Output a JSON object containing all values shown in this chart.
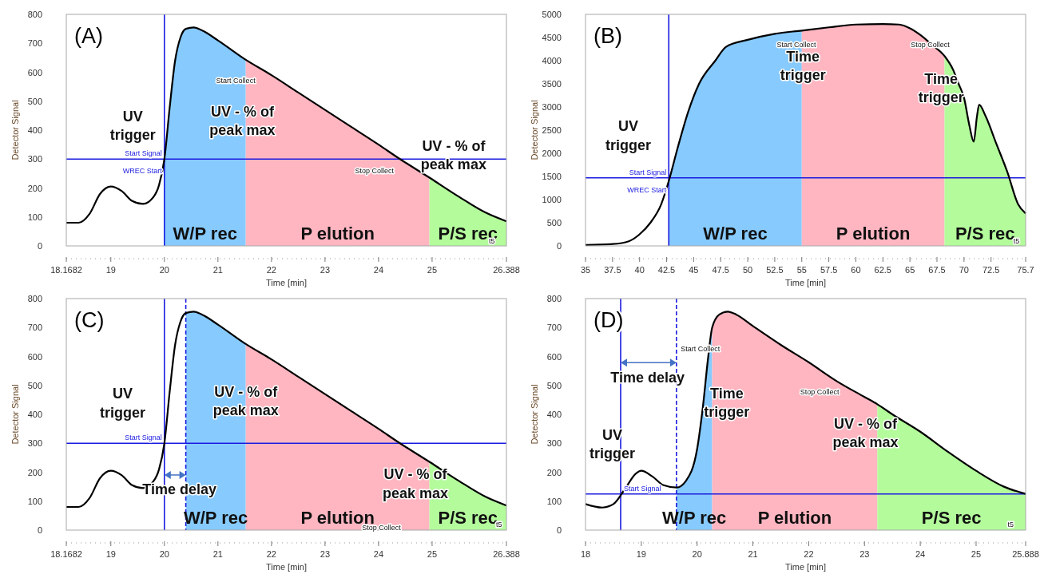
{
  "chart_data": [
    {
      "type": "line",
      "title": "(A)",
      "xlabel": "Time [min]",
      "ylabel": "Detector Signal",
      "xlim": [
        18.1682,
        26.388
      ],
      "xticks": [
        18.1682,
        19,
        20,
        21,
        22,
        23,
        24,
        25,
        26.388
      ],
      "ylim": [
        0,
        800
      ],
      "yticks": [
        0,
        100,
        200,
        300,
        400,
        500,
        600,
        700,
        800
      ],
      "series": [
        {
          "type": "area",
          "name": "W/P rec",
          "color": "#87cafe",
          "x": [
            20.0,
            20.1,
            20.2,
            20.3,
            20.4,
            20.55,
            20.7,
            21.0,
            21.52
          ],
          "values": [
            300,
            480,
            640,
            720,
            750,
            755,
            745,
            710,
            643
          ]
        },
        {
          "type": "area",
          "name": "P elution",
          "color": "#ffb6c1",
          "x": [
            21.52,
            22,
            22.5,
            23,
            23.5,
            24,
            24.4,
            24.95
          ],
          "values": [
            643,
            590,
            530,
            470,
            410,
            350,
            300,
            236
          ]
        },
        {
          "type": "area",
          "name": "P/S rec",
          "color": "#b4fb9c",
          "x": [
            24.95,
            25.5,
            26,
            26.388
          ],
          "values": [
            236,
            170,
            115,
            85
          ]
        },
        {
          "color": "#000000",
          "x": [
            18.1682,
            18.4,
            18.6,
            18.8,
            19.0,
            19.2,
            19.4,
            19.6,
            19.8,
            19.9,
            20.0,
            20.1,
            20.2,
            20.3,
            20.4,
            20.55,
            20.7,
            21.0,
            21.52,
            22,
            22.5,
            23,
            23.5,
            24,
            24.4,
            24.95,
            25.5,
            26,
            26.388
          ],
          "values": [
            80,
            80,
            110,
            180,
            205,
            190,
            155,
            145,
            170,
            210,
            300,
            480,
            640,
            720,
            750,
            755,
            745,
            710,
            643,
            590,
            530,
            470,
            410,
            350,
            300,
            236,
            170,
            115,
            85
          ]
        }
      ],
      "ref_lines": [
        {
          "axis": "x",
          "value": 20,
          "label": "WREC Start",
          "color": "#1a1ae0"
        },
        {
          "axis": "y",
          "value": 300,
          "label": "Start Signal",
          "color": "#1a1ae0"
        }
      ],
      "annotations": [
        "UV\ntrigger",
        "UV - % of\npeak max",
        "UV - % of\npeak max",
        "Start Collect",
        "Stop Collect",
        "t5"
      ]
    },
    {
      "type": "line",
      "title": "(B)",
      "xlabel": "Time [min]",
      "ylabel": "Detector Signal",
      "xlim": [
        35,
        75.7
      ],
      "xticks": [
        35,
        37.5,
        40,
        42.5,
        45,
        47.5,
        50,
        52.5,
        55,
        57.5,
        60,
        62.5,
        65,
        67.5,
        70,
        72.5,
        75.7
      ],
      "ylim": [
        0,
        5000
      ],
      "yticks": [
        0,
        500,
        1000,
        1500,
        2000,
        2500,
        3000,
        3500,
        4000,
        4500,
        5000
      ],
      "series": [
        {
          "type": "area",
          "name": "W/P rec",
          "color": "#87cafe",
          "x": [
            42.7,
            43.5,
            44.5,
            45.5,
            47,
            48,
            50,
            52.5,
            55
          ],
          "values": [
            1400,
            2100,
            2900,
            3500,
            4000,
            4300,
            4450,
            4580,
            4650
          ]
        },
        {
          "type": "area",
          "name": "P elution",
          "color": "#ffb6c1",
          "x": [
            55,
            57.5,
            60,
            62.5,
            64,
            65,
            66,
            67,
            68.2
          ],
          "values": [
            4650,
            4720,
            4780,
            4790,
            4780,
            4700,
            4550,
            4350,
            4100
          ]
        },
        {
          "type": "area",
          "name": "P/S rec",
          "color": "#b4fb9c",
          "x": [
            68.2,
            69,
            69.5,
            70,
            70.5,
            70.9,
            71.2,
            71.4,
            72,
            73,
            74,
            75,
            75.7
          ],
          "values": [
            4100,
            3800,
            3500,
            3200,
            2600,
            2250,
            2800,
            3050,
            2800,
            2200,
            1600,
            900,
            700
          ]
        },
        {
          "color": "#000000",
          "x": [
            35,
            37.5,
            39,
            40,
            41,
            42,
            42.7,
            43.5,
            44.5,
            45.5,
            47,
            48,
            50,
            52.5,
            55,
            57.5,
            60,
            62.5,
            64,
            65,
            66,
            67,
            68.2,
            69,
            69.5,
            70,
            70.5,
            70.9,
            71.2,
            71.4,
            72,
            73,
            74,
            75,
            75.7
          ],
          "values": [
            20,
            40,
            100,
            250,
            500,
            900,
            1400,
            2100,
            2900,
            3500,
            4000,
            4300,
            4450,
            4580,
            4650,
            4720,
            4780,
            4790,
            4780,
            4700,
            4550,
            4350,
            4100,
            3800,
            3500,
            3200,
            2600,
            2250,
            2800,
            3050,
            2800,
            2200,
            1600,
            900,
            700
          ]
        }
      ],
      "ref_lines": [
        {
          "axis": "x",
          "value": 42.7,
          "label": "WREC Start",
          "color": "#1a1ae0"
        },
        {
          "axis": "y",
          "value": 1470,
          "label": "Start Signal",
          "color": "#1a1ae0"
        }
      ],
      "annotations": [
        "UV\ntrigger",
        "Time\ntrigger",
        "Time\ntrigger",
        "Start Collect",
        "Stop Collect",
        "t5"
      ]
    },
    {
      "type": "line",
      "title": "(C)",
      "xlabel": "Time [min]",
      "ylabel": "Detector Signal",
      "xlim": [
        18.1682,
        26.388
      ],
      "xticks": [
        18.1682,
        19,
        20,
        21,
        22,
        23,
        24,
        25,
        26.388
      ],
      "ylim": [
        0,
        800
      ],
      "yticks": [
        0,
        100,
        200,
        300,
        400,
        500,
        600,
        700,
        800
      ],
      "series": [
        {
          "type": "area",
          "name": "W/P rec",
          "color": "#87cafe",
          "x": [
            20.4,
            20.55,
            20.7,
            21.0,
            21.52
          ],
          "values": [
            750,
            755,
            745,
            710,
            643
          ]
        },
        {
          "type": "area",
          "name": "P elution",
          "color": "#ffb6c1",
          "x": [
            21.52,
            22,
            22.5,
            23,
            23.5,
            24,
            24.4,
            24.95
          ],
          "values": [
            643,
            590,
            530,
            470,
            410,
            350,
            300,
            236
          ]
        },
        {
          "type": "area",
          "name": "P/S rec",
          "color": "#b4fb9c",
          "x": [
            24.95,
            25.5,
            26,
            26.388
          ],
          "values": [
            236,
            170,
            115,
            85
          ]
        },
        {
          "color": "#000000",
          "x": [
            18.1682,
            18.4,
            18.6,
            18.8,
            19.0,
            19.2,
            19.4,
            19.6,
            19.8,
            19.9,
            20.0,
            20.1,
            20.2,
            20.3,
            20.4,
            20.55,
            20.7,
            21.0,
            21.52,
            22,
            22.5,
            23,
            23.5,
            24,
            24.4,
            24.95,
            25.5,
            26,
            26.388
          ],
          "values": [
            80,
            80,
            110,
            180,
            205,
            190,
            155,
            145,
            170,
            210,
            300,
            480,
            640,
            720,
            750,
            755,
            745,
            710,
            643,
            590,
            530,
            470,
            410,
            350,
            300,
            236,
            170,
            115,
            85
          ]
        }
      ],
      "ref_lines": [
        {
          "axis": "x",
          "value": 20,
          "color": "#1a1ae0"
        },
        {
          "axis": "x",
          "value": 20.4,
          "color": "#1a1ae0",
          "line_style": "dashed"
        },
        {
          "axis": "y",
          "value": 300,
          "label": "Start Signal",
          "color": "#1a1ae0"
        }
      ],
      "annotations": [
        "UV\ntrigger",
        "Time delay",
        "UV - % of\npeak max",
        "UV - % of\npeak max",
        "Stop Collect",
        "t5"
      ]
    },
    {
      "type": "line",
      "title": "(D)",
      "xlabel": "Time [min]",
      "ylabel": "Detector Signal",
      "xlim": [
        18,
        25.888
      ],
      "xticks": [
        18,
        19,
        20,
        21,
        22,
        23,
        24,
        25,
        25.888
      ],
      "ylim": [
        0,
        800
      ],
      "yticks": [
        0,
        100,
        200,
        300,
        400,
        500,
        600,
        700,
        800
      ],
      "series": [
        {
          "type": "area",
          "name": "W/P rec",
          "color": "#87cafe",
          "x": [
            19.63,
            19.8,
            20.0,
            20.1,
            20.2,
            20.27
          ],
          "values": [
            147,
            170,
            280,
            420,
            600,
            700
          ]
        },
        {
          "type": "area",
          "name": "P elution",
          "color": "#ffb6c1",
          "x": [
            20.27,
            20.4,
            20.55,
            20.7,
            21.0,
            21.5,
            22,
            22.5,
            23,
            23.23
          ],
          "values": [
            700,
            745,
            755,
            745,
            705,
            640,
            580,
            515,
            460,
            435
          ]
        },
        {
          "type": "area",
          "name": "P/S rec",
          "color": "#b4fb9c",
          "x": [
            23.23,
            23.5,
            24,
            24.5,
            25,
            25.5,
            25.888
          ],
          "values": [
            435,
            400,
            340,
            270,
            205,
            150,
            125
          ]
        },
        {
          "color": "#000000",
          "x": [
            18,
            18.3,
            18.5,
            18.7,
            18.9,
            19.0,
            19.2,
            19.4,
            19.63,
            19.8,
            20.0,
            20.1,
            20.2,
            20.27,
            20.4,
            20.55,
            20.7,
            21.0,
            21.5,
            22,
            22.5,
            23,
            23.23,
            23.5,
            24,
            24.5,
            25,
            25.5,
            25.888
          ],
          "values": [
            90,
            78,
            90,
            140,
            195,
            205,
            185,
            155,
            147,
            170,
            280,
            420,
            600,
            700,
            745,
            755,
            745,
            705,
            640,
            580,
            515,
            460,
            435,
            400,
            340,
            270,
            205,
            150,
            125
          ]
        }
      ],
      "ref_lines": [
        {
          "axis": "x",
          "value": 18.63,
          "color": "#1a1ae0"
        },
        {
          "axis": "x",
          "value": 19.63,
          "color": "#1a1ae0",
          "line_style": "dashed"
        },
        {
          "axis": "y",
          "value": 125,
          "label": "Start Signal",
          "color": "#1a1ae0"
        }
      ],
      "annotations": [
        "UV\ntrigger",
        "Time delay",
        "Time\ntrigger",
        "UV - % of\npeak max",
        "Start Collect",
        "Stop Collect",
        "t5"
      ]
    }
  ]
}
